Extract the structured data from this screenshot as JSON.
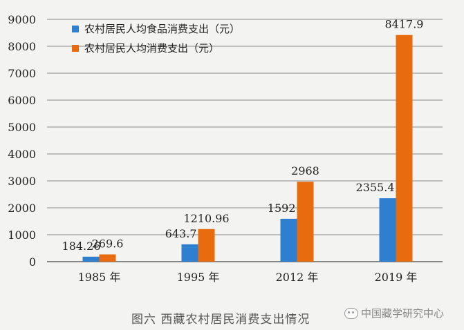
{
  "chart_data": {
    "type": "bar",
    "categories": [
      "1985 年",
      "1995 年",
      "2012 年",
      "2019 年"
    ],
    "series": [
      {
        "name": "农村居民人均食品消费支出（元）",
        "values": [
          184.26,
          643.7,
          1592,
          2355.4
        ],
        "labels": [
          "184.26",
          "643.7",
          "1592",
          "2355.4"
        ],
        "color": "#2e7fd0"
      },
      {
        "name": "农村居民人均消费支出（元）",
        "values": [
          269.6,
          1210.96,
          2968,
          8417.9
        ],
        "labels": [
          "269.6",
          "1210.96",
          "2968",
          "8417.9"
        ],
        "color": "#e96b10"
      }
    ],
    "ylim": [
      0,
      9000
    ],
    "yticks": [
      "0",
      "1000",
      "2000",
      "3000",
      "4000",
      "5000",
      "6000",
      "7000",
      "8000",
      "9000"
    ],
    "grid": true,
    "legend_position": "top-left",
    "title": "图六  西藏农村居民消费支出情况"
  },
  "watermark": {
    "text": "中国藏学研究中心",
    "icon": "wechat-icon"
  }
}
